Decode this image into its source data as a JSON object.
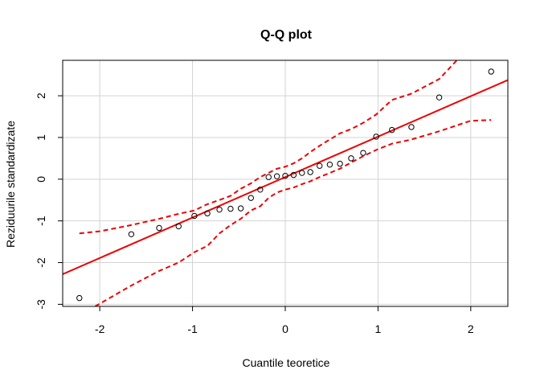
{
  "chart_data": {
    "type": "scatter",
    "title": "Q-Q plot",
    "xlabel": "Cuantile teoretice",
    "ylabel": "Reziduurile standardizate",
    "xlim": [
      -2.4,
      2.4
    ],
    "ylim": [
      -3.05,
      2.85
    ],
    "xticks": [
      -2,
      -1,
      0,
      1,
      2
    ],
    "yticks": [
      -3,
      -2,
      -1,
      0,
      1,
      2
    ],
    "grid": true,
    "points": {
      "x": [
        -2.22,
        -1.66,
        -1.36,
        -1.15,
        -0.98,
        -0.84,
        -0.71,
        -0.59,
        -0.48,
        -0.37,
        -0.27,
        -0.18,
        -0.09,
        0.0,
        0.09,
        0.18,
        0.27,
        0.37,
        0.48,
        0.59,
        0.71,
        0.84,
        0.98,
        1.15,
        1.36,
        1.66,
        2.22
      ],
      "y": [
        -2.85,
        -1.32,
        -1.17,
        -1.13,
        -0.88,
        -0.82,
        -0.73,
        -0.71,
        -0.7,
        -0.45,
        -0.25,
        0.05,
        0.07,
        0.08,
        0.1,
        0.15,
        0.17,
        0.32,
        0.35,
        0.37,
        0.5,
        0.63,
        1.02,
        1.18,
        1.25,
        1.96,
        2.58
      ]
    },
    "reference_line": {
      "intercept": 0.05,
      "slope": 0.97,
      "color": "#ee0000"
    },
    "upper_band": {
      "x": [
        -2.22,
        -2.0,
        -1.66,
        -1.36,
        -1.15,
        -0.98,
        -0.84,
        -0.71,
        -0.59,
        -0.48,
        -0.37,
        -0.27,
        -0.18,
        -0.09,
        0.0,
        0.09,
        0.18,
        0.27,
        0.37,
        0.48,
        0.59,
        0.71,
        0.84,
        0.98,
        1.15,
        1.36,
        1.66,
        1.85
      ],
      "y": [
        -1.3,
        -1.25,
        -1.1,
        -0.95,
        -0.83,
        -0.75,
        -0.6,
        -0.5,
        -0.4,
        -0.23,
        -0.1,
        0.05,
        0.15,
        0.25,
        0.3,
        0.38,
        0.5,
        0.65,
        0.8,
        0.95,
        1.1,
        1.2,
        1.35,
        1.55,
        1.9,
        2.05,
        2.4,
        2.85
      ]
    },
    "lower_band": {
      "x": [
        -2.05,
        -1.66,
        -1.36,
        -1.15,
        -0.98,
        -0.84,
        -0.71,
        -0.59,
        -0.48,
        -0.37,
        -0.27,
        -0.18,
        -0.09,
        0.0,
        0.09,
        0.18,
        0.27,
        0.37,
        0.48,
        0.59,
        0.71,
        0.84,
        0.98,
        1.15,
        1.36,
        1.66,
        2.0,
        2.22
      ],
      "y": [
        -3.05,
        -2.55,
        -2.2,
        -2.0,
        -1.75,
        -1.6,
        -1.3,
        -1.1,
        -0.95,
        -0.75,
        -0.65,
        -0.45,
        -0.32,
        -0.25,
        -0.2,
        -0.12,
        -0.05,
        0.05,
        0.15,
        0.25,
        0.4,
        0.55,
        0.7,
        0.85,
        0.95,
        1.15,
        1.4,
        1.42
      ]
    },
    "colors": {
      "line": "#ee0000",
      "points": "#000000",
      "grid": "#d3d3d3",
      "frame": "#000000"
    }
  }
}
